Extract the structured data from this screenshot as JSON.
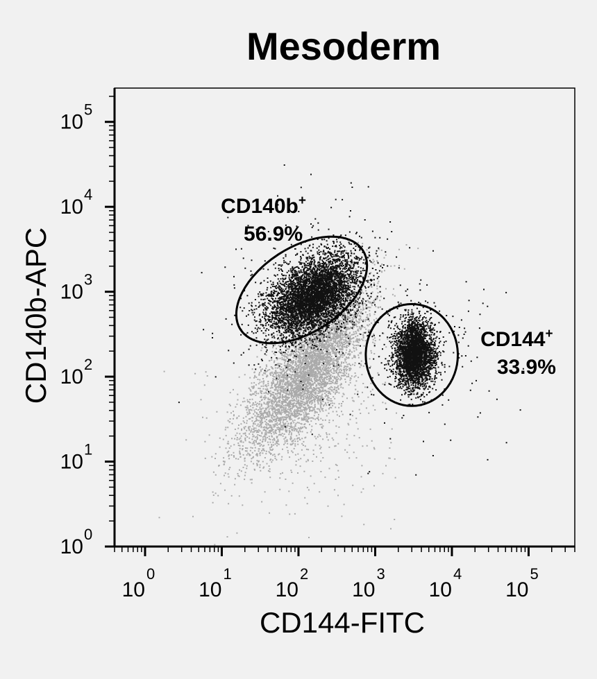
{
  "chart_data": {
    "type": "scatter",
    "title": "Mesoderm",
    "xlabel": "CD144-FITC",
    "ylabel": "CD140b-APC",
    "xscale": "log",
    "yscale": "log",
    "xlim": [
      0.4,
      400000
    ],
    "ylim": [
      1,
      250000
    ],
    "xticks": [
      {
        "value": 1,
        "base": "10",
        "exp": "0"
      },
      {
        "value": 10,
        "base": "10",
        "exp": "1"
      },
      {
        "value": 100,
        "base": "10",
        "exp": "2"
      },
      {
        "value": 1000,
        "base": "10",
        "exp": "3"
      },
      {
        "value": 10000,
        "base": "10",
        "exp": "4"
      },
      {
        "value": 100000,
        "base": "10",
        "exp": "5"
      }
    ],
    "yticks": [
      {
        "value": 1,
        "base": "10",
        "exp": "0"
      },
      {
        "value": 10,
        "base": "10",
        "exp": "1"
      },
      {
        "value": 100,
        "base": "10",
        "exp": "2"
      },
      {
        "value": 1000,
        "base": "10",
        "exp": "3"
      },
      {
        "value": 10000,
        "base": "10",
        "exp": "4"
      },
      {
        "value": 100000,
        "base": "10",
        "exp": "5"
      }
    ],
    "grid": false,
    "legend": "none",
    "populations": [
      {
        "gated": false,
        "color": "#aaaaaa",
        "center_x": 130,
        "center_y": 120,
        "spread_log_x": 0.35,
        "spread_log_y": 0.45
      },
      {
        "gated": true,
        "color": "#111111",
        "center_x": 150,
        "center_y": 900,
        "spread_log_x": 0.3,
        "spread_log_y": 0.22
      },
      {
        "gated": true,
        "color": "#111111",
        "center_x": 3200,
        "center_y": 190,
        "spread_log_x": 0.13,
        "spread_log_y": 0.2
      }
    ],
    "gates": [
      {
        "name": "CD140b",
        "superscript": "+",
        "percent": "56.9%",
        "cx": 110,
        "cy": 1050,
        "rx_log": 0.95,
        "ry_log": 0.5,
        "angle_deg": -33,
        "label_x": 35,
        "label_y": 8500
      },
      {
        "name": "CD144",
        "superscript": "+",
        "percent": "33.9%",
        "cx": 3000,
        "cy": 180,
        "rx_log": 0.6,
        "ry_log": 0.6,
        "angle_deg": 0,
        "label_x": 70000,
        "label_y": 230
      }
    ]
  }
}
